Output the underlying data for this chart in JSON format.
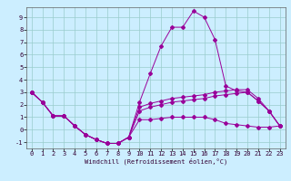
{
  "xlabel": "Windchill (Refroidissement éolien,°C)",
  "bg_color": "#cceeff",
  "grid_color": "#99cccc",
  "line_color": "#990099",
  "xlim": [
    -0.5,
    23.5
  ],
  "ylim": [
    -1.5,
    9.8
  ],
  "xticks": [
    0,
    1,
    2,
    3,
    4,
    5,
    6,
    7,
    8,
    9,
    10,
    11,
    12,
    13,
    14,
    15,
    16,
    17,
    18,
    19,
    20,
    21,
    22,
    23
  ],
  "yticks": [
    -1,
    0,
    1,
    2,
    3,
    4,
    5,
    6,
    7,
    8,
    9
  ],
  "line1_x": [
    0,
    1,
    2,
    3,
    4,
    5,
    6,
    7,
    8,
    9,
    10,
    11,
    12,
    13,
    14,
    15,
    16,
    17,
    18,
    19,
    20,
    21,
    22,
    23
  ],
  "line1_y": [
    3.0,
    2.2,
    1.1,
    1.1,
    0.3,
    -0.4,
    -0.8,
    -1.1,
    -1.1,
    -0.6,
    1.8,
    2.1,
    2.3,
    2.5,
    2.6,
    2.7,
    2.8,
    3.0,
    3.1,
    3.2,
    3.2,
    2.5,
    1.5,
    0.3
  ],
  "line2_x": [
    0,
    1,
    2,
    3,
    4,
    5,
    6,
    7,
    8,
    9,
    10,
    11,
    12,
    13,
    14,
    15,
    16,
    17,
    18,
    19,
    20,
    21,
    22,
    23
  ],
  "line2_y": [
    3.0,
    2.2,
    1.1,
    1.1,
    0.3,
    -0.4,
    -0.8,
    -1.1,
    -1.1,
    -0.6,
    2.2,
    4.5,
    6.7,
    8.2,
    8.2,
    9.5,
    9.0,
    7.2,
    3.5,
    3.1,
    3.0,
    2.3,
    1.5,
    0.3
  ],
  "line3_x": [
    0,
    1,
    2,
    3,
    4,
    5,
    6,
    7,
    8,
    9,
    10,
    11,
    12,
    13,
    14,
    15,
    16,
    17,
    18,
    19,
    20,
    21,
    22,
    23
  ],
  "line3_y": [
    3.0,
    2.2,
    1.1,
    1.1,
    0.3,
    -0.4,
    -0.8,
    -1.1,
    -1.1,
    -0.6,
    1.5,
    1.8,
    2.0,
    2.2,
    2.3,
    2.4,
    2.5,
    2.7,
    2.8,
    2.9,
    3.0,
    2.3,
    1.5,
    0.3
  ],
  "line4_x": [
    0,
    1,
    2,
    3,
    4,
    5,
    6,
    7,
    8,
    9,
    10,
    11,
    12,
    13,
    14,
    15,
    16,
    17,
    18,
    19,
    20,
    21,
    22,
    23
  ],
  "line4_y": [
    3.0,
    2.2,
    1.1,
    1.1,
    0.3,
    -0.4,
    -0.8,
    -1.1,
    -1.1,
    -0.6,
    0.8,
    0.8,
    0.9,
    1.0,
    1.0,
    1.0,
    1.0,
    0.8,
    0.5,
    0.4,
    0.3,
    0.2,
    0.2,
    0.3
  ],
  "tick_fontsize": 5,
  "xlabel_fontsize": 5
}
